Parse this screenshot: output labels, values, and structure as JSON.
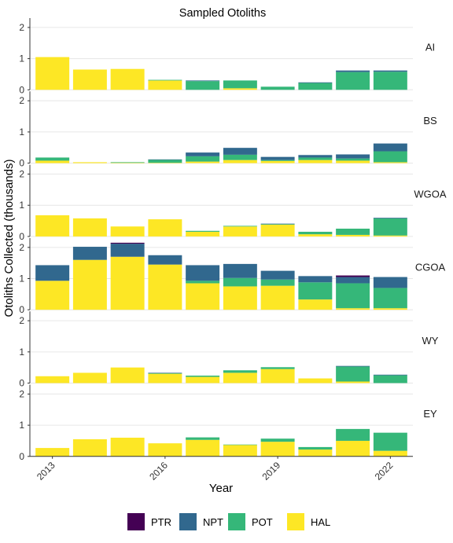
{
  "chart_data": {
    "type": "bar",
    "stacked": true,
    "title": "Sampled Otoliths",
    "xlabel": "Year",
    "ylabel": "Otoliths Collected (thousands)",
    "ylim": [
      0,
      2.2
    ],
    "yticks": [
      0,
      1,
      2
    ],
    "x": [
      2013,
      2014,
      2015,
      2016,
      2017,
      2018,
      2019,
      2020,
      2021,
      2022
    ],
    "xtick_labels": [
      "2013",
      "2016",
      "2019",
      "2022"
    ],
    "xtick_values": [
      2013,
      2016,
      2019,
      2022
    ],
    "grid": true,
    "legend_position": "bottom",
    "series_order": [
      "HAL",
      "POT",
      "NPT",
      "PTR"
    ],
    "legend_order": [
      "PTR",
      "NPT",
      "POT",
      "HAL"
    ],
    "colors": {
      "PTR": "#440154",
      "NPT": "#31688e",
      "POT": "#35b779",
      "HAL": "#fde725"
    },
    "panels": [
      {
        "label": "AI",
        "series": {
          "HAL": [
            1.05,
            0.65,
            0.67,
            0.3,
            0,
            0.05,
            0,
            0,
            0,
            0
          ],
          "POT": [
            0,
            0,
            0,
            0.02,
            0.28,
            0.25,
            0.1,
            0.22,
            0.57,
            0.58
          ],
          "NPT": [
            0,
            0,
            0,
            0,
            0.02,
            0,
            0,
            0.02,
            0.05,
            0.04
          ],
          "PTR": [
            0,
            0,
            0,
            0,
            0,
            0,
            0,
            0,
            0,
            0
          ]
        }
      },
      {
        "label": "BS",
        "series": {
          "HAL": [
            0.08,
            0.03,
            0.01,
            0.01,
            0.05,
            0.1,
            0.07,
            0.1,
            0.08,
            0.03
          ],
          "POT": [
            0.1,
            0,
            0.02,
            0.1,
            0.17,
            0.17,
            0.03,
            0.08,
            0.07,
            0.35
          ],
          "NPT": [
            0,
            0,
            0,
            0.01,
            0.12,
            0.22,
            0.1,
            0.08,
            0.13,
            0.25
          ],
          "PTR": [
            0,
            0,
            0,
            0,
            0,
            0,
            0,
            0,
            0,
            0
          ]
        }
      },
      {
        "label": "WGOA",
        "series": {
          "HAL": [
            0.68,
            0.58,
            0.32,
            0.55,
            0.15,
            0.32,
            0.38,
            0.07,
            0.05,
            0.03
          ],
          "POT": [
            0,
            0,
            0,
            0,
            0.03,
            0.02,
            0.02,
            0.08,
            0.2,
            0.55
          ],
          "NPT": [
            0,
            0,
            0,
            0,
            0,
            0,
            0.01,
            0,
            0,
            0.02
          ],
          "PTR": [
            0,
            0,
            0,
            0,
            0,
            0,
            0,
            0,
            0,
            0
          ]
        }
      },
      {
        "label": "CGOA",
        "series": {
          "HAL": [
            0.93,
            1.6,
            1.7,
            1.45,
            0.85,
            0.75,
            0.77,
            0.33,
            0.05,
            0.05
          ],
          "POT": [
            0,
            0,
            0,
            0,
            0.08,
            0.27,
            0.2,
            0.55,
            0.8,
            0.65
          ],
          "NPT": [
            0.5,
            0.42,
            0.42,
            0.3,
            0.5,
            0.45,
            0.28,
            0.2,
            0.2,
            0.35
          ],
          "PTR": [
            0,
            0,
            0.03,
            0,
            0,
            0,
            0,
            0,
            0.05,
            0
          ]
        }
      },
      {
        "label": "WY",
        "series": {
          "HAL": [
            0.22,
            0.33,
            0.5,
            0.3,
            0.2,
            0.33,
            0.45,
            0.15,
            0.05,
            0
          ],
          "POT": [
            0,
            0,
            0,
            0.02,
            0.04,
            0.08,
            0.06,
            0,
            0.48,
            0.25
          ],
          "NPT": [
            0,
            0,
            0,
            0.01,
            0,
            0,
            0,
            0,
            0.02,
            0.02
          ],
          "PTR": [
            0,
            0,
            0,
            0,
            0,
            0,
            0,
            0,
            0,
            0
          ]
        }
      },
      {
        "label": "EY",
        "series": {
          "HAL": [
            0.27,
            0.55,
            0.6,
            0.42,
            0.53,
            0.37,
            0.47,
            0.22,
            0.5,
            0.18
          ],
          "POT": [
            0,
            0,
            0,
            0,
            0.08,
            0.01,
            0.1,
            0.08,
            0.38,
            0.58
          ],
          "NPT": [
            0,
            0,
            0,
            0,
            0,
            0,
            0,
            0,
            0,
            0
          ],
          "PTR": [
            0,
            0,
            0,
            0,
            0,
            0,
            0,
            0,
            0,
            0
          ]
        }
      }
    ]
  }
}
